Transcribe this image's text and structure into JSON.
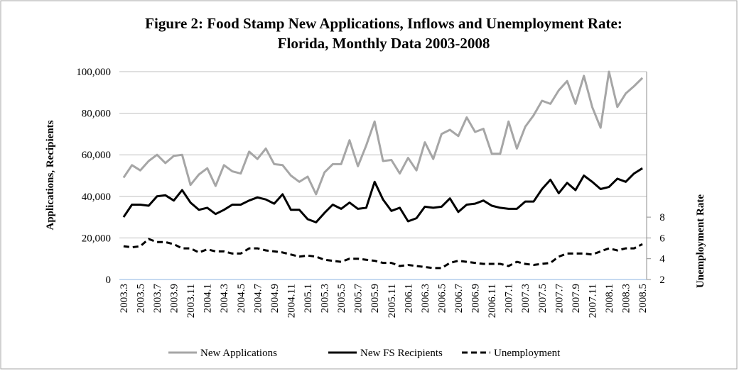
{
  "chart_data": {
    "type": "line",
    "title": [
      "Figure 2: Food Stamp New Applications, Inflows and Unemployment Rate:",
      "Florida, Monthly Data 2003-2008"
    ],
    "ylabel": "Applications, Recipients",
    "y2label": "Unemployment Rate",
    "categories": [
      "2003.3",
      null,
      "2003.5",
      null,
      "2003.7",
      null,
      "2003.9",
      null,
      "2003.11",
      null,
      "2004.1",
      null,
      "2004.3",
      null,
      "2004.5",
      null,
      "2004.7",
      null,
      "2004.9",
      null,
      "2004.11",
      null,
      "2005.1",
      null,
      "2005.3",
      null,
      "2005.5",
      null,
      "2005.7",
      null,
      "2005.9",
      null,
      "2005.11",
      null,
      "2006.1",
      null,
      "2006.3",
      null,
      "2006.5",
      null,
      "2006.7",
      null,
      "2006.9",
      null,
      "2006.11",
      null,
      "2007.1",
      null,
      "2007.3",
      null,
      "2007.5",
      null,
      "2007.7",
      null,
      "2007.9",
      null,
      "2007.11",
      null,
      "2008.1",
      null,
      "2008.3",
      null,
      "2008.5"
    ],
    "ylim": [
      0,
      100000
    ],
    "yticks": [
      {
        "value": 0,
        "label": "0"
      },
      {
        "value": 20000,
        "label": "20,000"
      },
      {
        "value": 40000,
        "label": "40,000"
      },
      {
        "value": 60000,
        "label": "60,000"
      },
      {
        "value": 80000,
        "label": "80,000"
      },
      {
        "value": 100000,
        "label": "100,000"
      }
    ],
    "y2lim": [
      2,
      22
    ],
    "y2ticks": [
      2,
      4,
      6,
      8
    ],
    "grid": true,
    "legend": "bottom",
    "series": [
      {
        "name": "New Applications",
        "color": "#a6a6a6",
        "values": [
          49000,
          55000,
          52500,
          57000,
          60000,
          56000,
          59500,
          60000,
          45500,
          50500,
          53500,
          45000,
          55000,
          52000,
          51000,
          61500,
          58000,
          63000,
          55500,
          55000,
          50000,
          47000,
          49500,
          41000,
          51500,
          55500,
          55500,
          67000,
          54500,
          64500,
          76000,
          57000,
          57500,
          51000,
          58500,
          52500,
          66000,
          58000,
          70000,
          72000,
          69000,
          78000,
          71000,
          72500,
          60500,
          60500,
          76000,
          63000,
          73500,
          79000,
          86000,
          84500,
          91000,
          95500,
          84500,
          98000,
          83000,
          73000,
          100000,
          83000,
          89500,
          93000,
          97000
        ]
      },
      {
        "name": "New FS Recipients",
        "color": "#000000",
        "values": [
          30000,
          36000,
          36000,
          35500,
          40000,
          40500,
          38000,
          43000,
          37000,
          33500,
          34500,
          31500,
          33500,
          36000,
          36000,
          38000,
          39500,
          38500,
          36500,
          41000,
          33500,
          33500,
          29000,
          27500,
          32000,
          36000,
          34000,
          37000,
          34000,
          34500,
          47000,
          38500,
          33000,
          34500,
          28000,
          29500,
          35000,
          34500,
          35000,
          39000,
          32500,
          36000,
          36500,
          38000,
          35500,
          34500,
          34000,
          34000,
          37500,
          37500,
          43500,
          48000,
          41500,
          46500,
          43000,
          50000,
          47000,
          43500,
          44500,
          48500,
          47000,
          51000,
          53500
        ]
      },
      {
        "name": "Unemployment",
        "color": "#000000",
        "axis": "y2",
        "dash": true,
        "values": [
          5.2,
          5.1,
          5.2,
          5.9,
          5.6,
          5.6,
          5.4,
          5.0,
          5.0,
          4.6,
          4.9,
          4.7,
          4.7,
          4.5,
          4.5,
          5.0,
          5.0,
          4.8,
          4.7,
          4.6,
          4.4,
          4.2,
          4.3,
          4.2,
          3.9,
          3.8,
          3.7,
          4.0,
          4.0,
          3.9,
          3.8,
          3.6,
          3.6,
          3.3,
          3.4,
          3.3,
          3.2,
          3.1,
          3.1,
          3.6,
          3.8,
          3.7,
          3.6,
          3.5,
          3.5,
          3.5,
          3.3,
          3.7,
          3.5,
          3.4,
          3.5,
          3.6,
          4.2,
          4.5,
          4.5,
          4.5,
          4.4,
          4.7,
          5.0,
          4.8,
          5.0,
          5.0,
          5.4
        ]
      }
    ]
  }
}
